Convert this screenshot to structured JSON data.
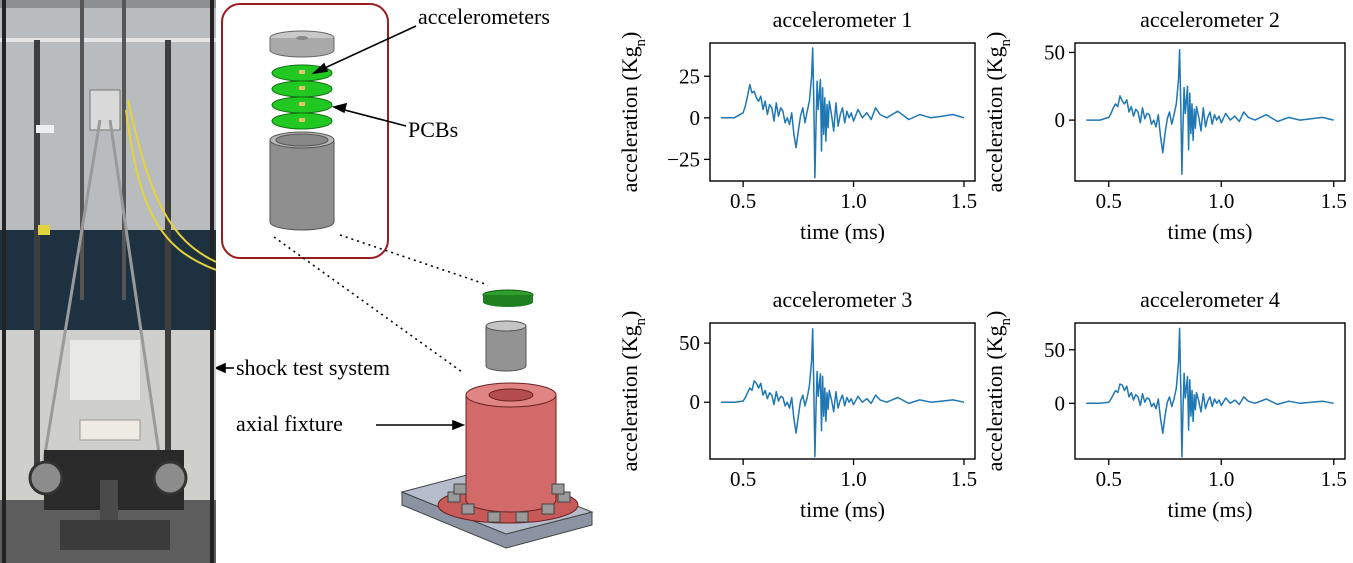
{
  "figure": {
    "annotations": {
      "accelerometers": "accelerometers",
      "pcbs": "PCBs",
      "shock_system": "shock test system",
      "axial_fixture": "axial fixture"
    },
    "colors": {
      "line": "#1f77b4",
      "pcb": "#22c822",
      "fixture": "#d36a6a",
      "box": "#9b1c1c"
    }
  },
  "chart_data": [
    {
      "type": "line",
      "title": "accelerometer 1",
      "xlabel": "time (ms)",
      "ylabel": "acceleration (Kg",
      "ylabel_sub": "n",
      "ylabel_end": ")",
      "xlim": [
        0.35,
        1.55
      ],
      "ylim": [
        -38,
        45
      ],
      "xticks": [
        0.5,
        1.0,
        1.5
      ],
      "xticklabels": [
        "0.5",
        "1.0",
        "1.5"
      ],
      "yticks": [
        -25,
        0,
        25
      ],
      "yticklabels": [
        "−25",
        "0",
        "25"
      ],
      "series": [
        {
          "x": [
            0.4,
            0.46,
            0.5,
            0.51,
            0.52,
            0.53,
            0.54,
            0.55,
            0.56,
            0.57,
            0.58,
            0.59,
            0.6,
            0.61,
            0.62,
            0.63,
            0.64,
            0.65,
            0.66,
            0.67,
            0.68,
            0.69,
            0.7,
            0.71,
            0.72,
            0.73,
            0.74,
            0.75,
            0.76,
            0.77,
            0.78,
            0.79,
            0.8,
            0.81,
            0.815,
            0.82,
            0.825,
            0.83,
            0.835,
            0.84,
            0.85,
            0.855,
            0.86,
            0.865,
            0.87,
            0.875,
            0.88,
            0.885,
            0.89,
            0.9,
            0.91,
            0.92,
            0.93,
            0.94,
            0.95,
            0.96,
            0.97,
            0.98,
            0.99,
            1.0,
            1.02,
            1.04,
            1.06,
            1.08,
            1.1,
            1.12,
            1.15,
            1.2,
            1.25,
            1.3,
            1.35,
            1.4,
            1.45,
            1.5
          ],
          "y": [
            0,
            0,
            3,
            7,
            13,
            20,
            15,
            16,
            12,
            10,
            13,
            5,
            10,
            2,
            8,
            6,
            -2,
            9,
            1,
            6,
            4,
            -3,
            0,
            -4,
            3,
            -10,
            -18,
            -8,
            1,
            6,
            -3,
            4,
            10,
            25,
            42,
            10,
            -36,
            -5,
            22,
            5,
            23,
            -20,
            18,
            -10,
            12,
            -14,
            8,
            -6,
            10,
            2,
            -8,
            9,
            -5,
            2,
            6,
            -3,
            4,
            0,
            3,
            -2,
            5,
            0,
            3,
            -1,
            6,
            2,
            0,
            4,
            -1,
            2,
            0,
            1,
            2,
            0
          ]
        }
      ]
    },
    {
      "type": "line",
      "title": "accelerometer 2",
      "xlabel": "time (ms)",
      "ylabel": "acceleration (Kg",
      "ylabel_sub": "n",
      "ylabel_end": ")",
      "xlim": [
        0.35,
        1.55
      ],
      "ylim": [
        -45,
        57
      ],
      "xticks": [
        0.5,
        1.0,
        1.5
      ],
      "xticklabels": [
        "0.5",
        "1.0",
        "1.5"
      ],
      "yticks": [
        0,
        50
      ],
      "yticklabels": [
        "0",
        "50"
      ],
      "series": [
        {
          "x": [
            0.4,
            0.46,
            0.5,
            0.51,
            0.52,
            0.53,
            0.54,
            0.55,
            0.56,
            0.57,
            0.58,
            0.59,
            0.6,
            0.61,
            0.62,
            0.63,
            0.64,
            0.65,
            0.66,
            0.67,
            0.68,
            0.69,
            0.7,
            0.71,
            0.72,
            0.73,
            0.74,
            0.75,
            0.76,
            0.77,
            0.78,
            0.79,
            0.8,
            0.81,
            0.815,
            0.82,
            0.825,
            0.83,
            0.835,
            0.84,
            0.85,
            0.855,
            0.86,
            0.865,
            0.87,
            0.875,
            0.88,
            0.885,
            0.89,
            0.9,
            0.91,
            0.92,
            0.93,
            0.94,
            0.95,
            0.96,
            0.97,
            0.98,
            0.99,
            1.0,
            1.02,
            1.04,
            1.06,
            1.08,
            1.1,
            1.12,
            1.15,
            1.2,
            1.25,
            1.3,
            1.35,
            1.4,
            1.45,
            1.5
          ],
          "y": [
            0,
            0,
            2,
            5,
            9,
            12,
            10,
            18,
            14,
            12,
            15,
            6,
            10,
            3,
            8,
            6,
            -2,
            9,
            1,
            5,
            4,
            -3,
            0,
            -5,
            4,
            -12,
            -24,
            -10,
            1,
            6,
            -3,
            4,
            12,
            30,
            52,
            10,
            -40,
            -5,
            24,
            5,
            25,
            -22,
            20,
            -10,
            12,
            -15,
            8,
            -6,
            10,
            2,
            -8,
            9,
            -5,
            2,
            6,
            -3,
            4,
            0,
            3,
            -2,
            5,
            0,
            3,
            -1,
            6,
            2,
            0,
            4,
            -1,
            2,
            0,
            1,
            2,
            0
          ]
        }
      ]
    },
    {
      "type": "line",
      "title": "accelerometer 3",
      "xlabel": "time (ms)",
      "ylabel": "acceleration (Kg",
      "ylabel_sub": "n",
      "ylabel_end": ")",
      "xlim": [
        0.35,
        1.55
      ],
      "ylim": [
        -48,
        67
      ],
      "xticks": [
        0.5,
        1.0,
        1.5
      ],
      "xticklabels": [
        "0.5",
        "1.0",
        "1.5"
      ],
      "yticks": [
        0,
        50
      ],
      "yticklabels": [
        "0",
        "50"
      ],
      "series": [
        {
          "x": [
            0.4,
            0.46,
            0.5,
            0.51,
            0.52,
            0.53,
            0.54,
            0.55,
            0.56,
            0.57,
            0.58,
            0.59,
            0.6,
            0.61,
            0.62,
            0.63,
            0.64,
            0.65,
            0.66,
            0.67,
            0.68,
            0.69,
            0.7,
            0.71,
            0.72,
            0.73,
            0.74,
            0.75,
            0.76,
            0.77,
            0.78,
            0.79,
            0.8,
            0.81,
            0.815,
            0.82,
            0.825,
            0.83,
            0.835,
            0.84,
            0.85,
            0.855,
            0.86,
            0.865,
            0.87,
            0.875,
            0.88,
            0.885,
            0.89,
            0.9,
            0.91,
            0.92,
            0.93,
            0.94,
            0.95,
            0.96,
            0.97,
            0.98,
            0.99,
            1.0,
            1.02,
            1.04,
            1.06,
            1.08,
            1.1,
            1.12,
            1.15,
            1.2,
            1.25,
            1.3,
            1.35,
            1.4,
            1.45,
            1.5
          ],
          "y": [
            0,
            0,
            1,
            4,
            8,
            12,
            10,
            18,
            16,
            12,
            16,
            6,
            10,
            3,
            8,
            6,
            -2,
            9,
            1,
            5,
            4,
            -3,
            0,
            -5,
            4,
            -14,
            -26,
            -12,
            1,
            6,
            -3,
            4,
            14,
            35,
            62,
            12,
            -46,
            -6,
            26,
            5,
            24,
            -24,
            22,
            -12,
            12,
            -16,
            8,
            -6,
            10,
            2,
            -8,
            9,
            -5,
            2,
            6,
            -3,
            4,
            0,
            3,
            -2,
            5,
            0,
            3,
            -1,
            6,
            2,
            0,
            4,
            -1,
            2,
            0,
            1,
            2,
            0
          ]
        }
      ]
    },
    {
      "type": "line",
      "title": "accelerometer 4",
      "xlabel": "time (ms)",
      "ylabel": "acceleration (Kg",
      "ylabel_sub": "n",
      "ylabel_end": ")",
      "xlim": [
        0.35,
        1.55
      ],
      "ylim": [
        -52,
        75
      ],
      "xticks": [
        0.5,
        1.0,
        1.5
      ],
      "xticklabels": [
        "0.5",
        "1.0",
        "1.5"
      ],
      "yticks": [
        0,
        50
      ],
      "yticklabels": [
        "0",
        "50"
      ],
      "series": [
        {
          "x": [
            0.4,
            0.46,
            0.5,
            0.51,
            0.52,
            0.53,
            0.54,
            0.55,
            0.56,
            0.57,
            0.58,
            0.59,
            0.6,
            0.61,
            0.62,
            0.63,
            0.64,
            0.65,
            0.66,
            0.67,
            0.68,
            0.69,
            0.7,
            0.71,
            0.72,
            0.73,
            0.74,
            0.75,
            0.76,
            0.77,
            0.78,
            0.79,
            0.8,
            0.81,
            0.815,
            0.82,
            0.825,
            0.83,
            0.835,
            0.84,
            0.85,
            0.855,
            0.86,
            0.865,
            0.87,
            0.875,
            0.88,
            0.885,
            0.89,
            0.9,
            0.91,
            0.92,
            0.93,
            0.94,
            0.95,
            0.96,
            0.97,
            0.98,
            0.99,
            1.0,
            1.02,
            1.04,
            1.06,
            1.08,
            1.1,
            1.12,
            1.15,
            1.2,
            1.25,
            1.3,
            1.35,
            1.4,
            1.45,
            1.5
          ],
          "y": [
            0,
            0,
            1,
            4,
            8,
            12,
            10,
            18,
            17,
            12,
            16,
            6,
            10,
            3,
            8,
            6,
            -2,
            9,
            1,
            5,
            4,
            -3,
            0,
            -5,
            4,
            -14,
            -28,
            -12,
            1,
            6,
            -3,
            4,
            14,
            38,
            70,
            12,
            -50,
            -6,
            28,
            5,
            25,
            -25,
            22,
            -12,
            12,
            -17,
            8,
            -6,
            10,
            2,
            -8,
            9,
            -5,
            2,
            6,
            -3,
            4,
            0,
            3,
            -2,
            5,
            0,
            3,
            -1,
            6,
            2,
            0,
            4,
            -1,
            2,
            0,
            1,
            2,
            0
          ]
        }
      ]
    }
  ]
}
